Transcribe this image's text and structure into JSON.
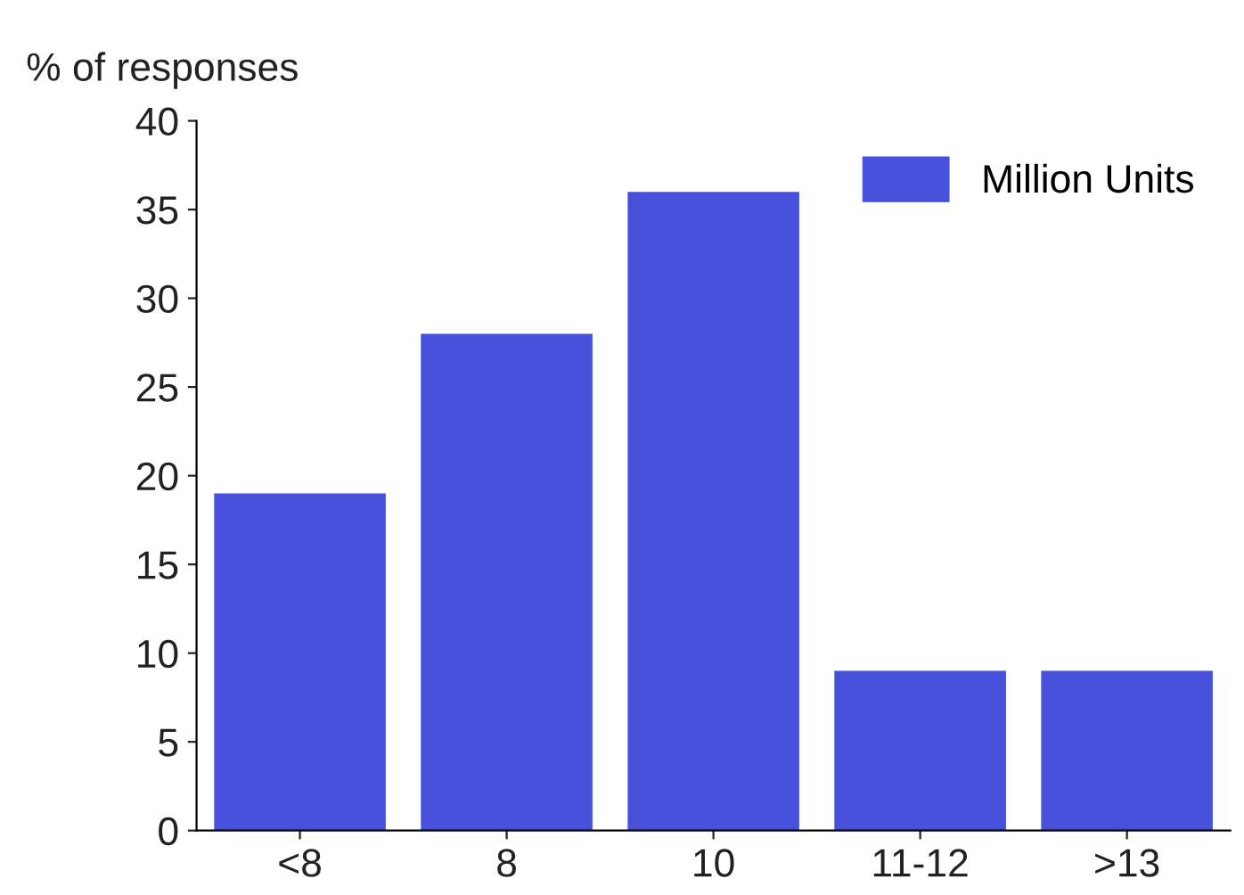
{
  "chart_data": {
    "type": "bar",
    "ylabel": "% of responses",
    "categories": [
      "<8",
      "8",
      "10",
      "11-12",
      ">13"
    ],
    "series": [
      {
        "name": "Million Units",
        "color": "#4650da",
        "values": [
          19,
          28,
          36,
          9,
          9
        ]
      }
    ],
    "ylim": [
      0,
      40
    ],
    "yticks": [
      0,
      5,
      10,
      15,
      20,
      25,
      30,
      35,
      40
    ],
    "grid": false,
    "legend": "top right"
  }
}
